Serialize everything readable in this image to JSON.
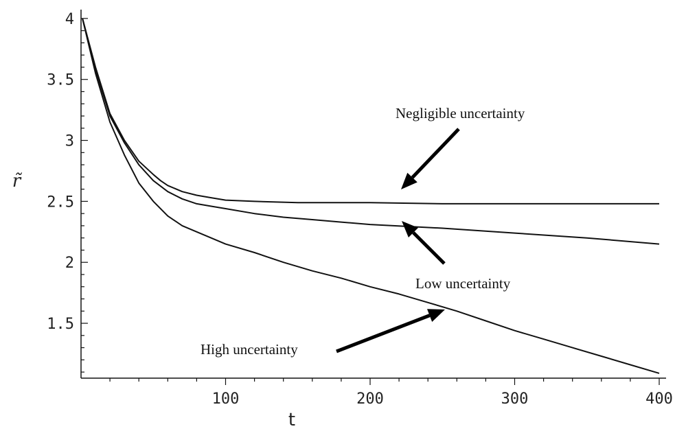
{
  "chart_data": {
    "type": "line",
    "title": "",
    "xlabel": "t",
    "ylabel": "r̃",
    "xlim": [
      0,
      400
    ],
    "ylim": [
      1.05,
      4.05
    ],
    "x_ticks": [
      {
        "value": 100,
        "label": "100"
      },
      {
        "value": 200,
        "label": "200"
      },
      {
        "value": 300,
        "label": "300"
      },
      {
        "value": 400,
        "label": "400"
      }
    ],
    "y_ticks": [
      {
        "value": 1.5,
        "label": "1.5"
      },
      {
        "value": 2,
        "label": "2"
      },
      {
        "value": 2.5,
        "label": "2.5"
      },
      {
        "value": 3,
        "label": "3"
      },
      {
        "value": 3.5,
        "label": "3.5"
      },
      {
        "value": 4,
        "label": "4"
      }
    ],
    "grid": false,
    "series": [
      {
        "name": "Negligible uncertainty",
        "x": [
          1,
          10,
          20,
          30,
          40,
          50,
          55,
          60,
          70,
          80,
          90,
          100,
          120,
          150,
          200,
          250,
          300,
          350,
          400
        ],
        "y": [
          4.0,
          3.6,
          3.22,
          3.0,
          2.83,
          2.72,
          2.67,
          2.63,
          2.58,
          2.55,
          2.53,
          2.51,
          2.5,
          2.49,
          2.49,
          2.48,
          2.48,
          2.48,
          2.48
        ]
      },
      {
        "name": "Low uncertainty",
        "x": [
          1,
          10,
          20,
          30,
          40,
          50,
          60,
          70,
          80,
          90,
          100,
          120,
          140,
          160,
          180,
          200,
          250,
          300,
          350,
          400
        ],
        "y": [
          4.0,
          3.58,
          3.2,
          2.98,
          2.8,
          2.67,
          2.58,
          2.52,
          2.48,
          2.46,
          2.44,
          2.4,
          2.37,
          2.35,
          2.33,
          2.31,
          2.28,
          2.24,
          2.2,
          2.15
        ]
      },
      {
        "name": "High uncertainty",
        "x": [
          1,
          10,
          20,
          30,
          40,
          50,
          60,
          70,
          80,
          90,
          100,
          120,
          140,
          160,
          180,
          200,
          220,
          240,
          260,
          280,
          300,
          320,
          340,
          360,
          380,
          400
        ],
        "y": [
          4.0,
          3.55,
          3.15,
          2.88,
          2.65,
          2.5,
          2.38,
          2.3,
          2.25,
          2.2,
          2.15,
          2.08,
          2.0,
          1.93,
          1.87,
          1.8,
          1.74,
          1.67,
          1.6,
          1.52,
          1.44,
          1.37,
          1.3,
          1.23,
          1.16,
          1.09
        ]
      }
    ],
    "annotations": [
      {
        "text": "Negligible uncertainty",
        "series": "Negligible uncertainty"
      },
      {
        "text": "Low uncertainty",
        "series": "Low uncertainty"
      },
      {
        "text": "High uncertainty",
        "series": "High uncertainty"
      }
    ]
  }
}
